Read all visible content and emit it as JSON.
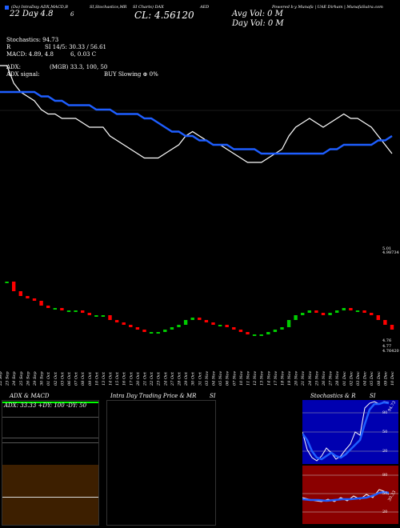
{
  "header": {
    "line1": [
      "(Da) IntraDay ADX,MACD,B",
      "SI,Stochastics,MR",
      "SI Charts) DAX",
      "AED",
      "Powered b",
      "y Munafa | UAE Dirham | MunafaSutra.com"
    ],
    "price_label": "CL: 4.56120",
    "mid_left": "22 Day",
    "mid_ratio": "- 4.8",
    "mid_num": "6",
    "avg_vol": "Avg Vol: 0   M",
    "day_vol": "Day Vol: 0   M",
    "stochastics": "Stochastics: 94.73",
    "si_line": "SI 14/5: 30.33 / 56.61",
    "r_label": "R",
    "macd": "MACD: 4.89, 4.8",
    "macd_tail": "6, 0.03 C",
    "adx": "ADX:",
    "adx_mid": "(MGB) 33.3,  100,  50",
    "adx_signal": "ADX  signal:",
    "buy_signal": "BUY Slowing ⊕ 0%"
  },
  "price_axis": {
    "top_label": "5.01",
    "top_sub": "4.98734",
    "bot_label1": "4.76",
    "bot_label2": "4.77",
    "bot_label3": "4.76420"
  },
  "panels": {
    "adx_title": "ADX  & MACD",
    "adx_values": "ADX: 33.33  +DY: 100  -DY: 50",
    "intra_title": "Intra  Day Trading Price  & MR",
    "intra_tail": "SI",
    "stoch_title": "Stochastics & R",
    "stoch_tail": "SI",
    "stoch_ticks": [
      "80",
      "50",
      "20"
    ],
    "rsi_ticks": [
      "80",
      "50",
      "20"
    ],
    "stoch_value": "94.73",
    "rsi_value": "30.33"
  },
  "colors": {
    "up": "#00cc00",
    "down": "#ff0000",
    "ma": "#1e5eff",
    "price": "#ffffff",
    "rsi_bg": "#8b0000",
    "stoch_bg": "#0000b0",
    "adx_green": "#00ff00",
    "macd_bg": "#3d1f00"
  },
  "chart_data": {
    "type": "line",
    "dates": [
      "22 Sep",
      "23 Sep",
      "24 Sep",
      "25 Sep",
      "26 Sep",
      "29 Sep",
      "30 Sep",
      "01 Oct",
      "02 Oct",
      "03 Oct",
      "06 Oct",
      "07 Oct",
      "08 Oct",
      "09 Oct",
      "10 Oct",
      "13 Oct",
      "14 Oct",
      "15 Oct",
      "16 Oct",
      "17 Oct",
      "20 Oct",
      "21 Oct",
      "22 Oct",
      "23 Oct",
      "24 Oct",
      "27 Oct",
      "28 Oct",
      "29 Oct",
      "30 Oct",
      "31 Oct",
      "03 Nov",
      "04 Nov",
      "05 Nov",
      "06 Nov",
      "07 Nov",
      "10 Nov",
      "11 Nov",
      "12 Nov",
      "13 Nov",
      "14 Nov",
      "17 Nov",
      "18 Nov",
      "19 Nov",
      "20 Nov",
      "21 Nov",
      "24 Nov",
      "25 Nov",
      "26 Nov",
      "27 Nov",
      "28 Nov",
      "01 Dec",
      "02 Dec",
      "03 Dec",
      "04 Dec",
      "05 Dec",
      "08 Dec",
      "09 Dec",
      "10 Dec"
    ],
    "series": [
      {
        "values": [
          4.76,
          4.76,
          4.72,
          4.7,
          4.69,
          4.68,
          4.66,
          4.65,
          4.65,
          4.64,
          4.64,
          4.64,
          4.63,
          4.62,
          4.62,
          4.62,
          4.6,
          4.59,
          4.58,
          4.57,
          4.56,
          4.55,
          4.55,
          4.55,
          4.56,
          4.57,
          4.58,
          4.6,
          4.61,
          4.6,
          4.59,
          4.58,
          4.58,
          4.57,
          4.56,
          4.55,
          4.54,
          4.54,
          4.54,
          4.55,
          4.56,
          4.57,
          4.6,
          4.62,
          4.63,
          4.64,
          4.63,
          4.62,
          4.63,
          4.64,
          4.65,
          4.64,
          4.64,
          4.63,
          4.62,
          4.6,
          4.58,
          4.56
        ]
      },
      {
        "values": [
          4.7,
          4.7,
          4.7,
          4.7,
          4.7,
          4.7,
          4.69,
          4.69,
          4.68,
          4.68,
          4.67,
          4.67,
          4.67,
          4.67,
          4.66,
          4.66,
          4.66,
          4.65,
          4.65,
          4.65,
          4.65,
          4.64,
          4.64,
          4.63,
          4.62,
          4.61,
          4.61,
          4.6,
          4.6,
          4.59,
          4.59,
          4.58,
          4.58,
          4.58,
          4.57,
          4.57,
          4.57,
          4.57,
          4.56,
          4.56,
          4.56,
          4.56,
          4.56,
          4.56,
          4.56,
          4.56,
          4.56,
          4.56,
          4.57,
          4.57,
          4.58,
          4.58,
          4.58,
          4.58,
          4.58,
          4.59,
          4.59,
          4.6
        ]
      }
    ],
    "ylim": [
      4.4,
      4.8
    ]
  }
}
